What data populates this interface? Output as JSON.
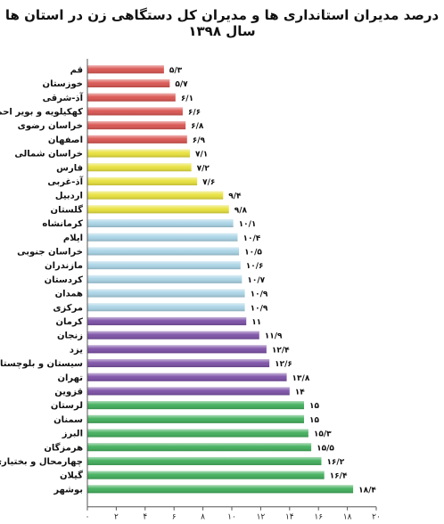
{
  "chart_data": {
    "type": "bar",
    "orientation": "horizontal",
    "title": "درصد مدیران استانداری ها و مدیران کل دستگاهی زن در استان ها سال ۱۳۹۸",
    "xlim": [
      0,
      20
    ],
    "x_ticks": [
      "۰",
      "۲",
      "۴",
      "۶",
      "۸",
      "۱۰",
      "۱۲",
      "۱۴",
      "۱۶",
      "۱۸",
      "۲۰"
    ],
    "grid": false,
    "legend": "none",
    "bars": [
      {
        "category": "قم",
        "value": 5.3,
        "label": "۵/۳",
        "color": "#d9534f"
      },
      {
        "category": "خوزستان",
        "value": 5.7,
        "label": "۵/۷",
        "color": "#d9534f"
      },
      {
        "category": "آذ-شرقی",
        "value": 6.1,
        "label": "۶/۱",
        "color": "#d9534f"
      },
      {
        "category": "کهکیلویه و بویر احمد",
        "value": 6.6,
        "label": "۶/۶",
        "color": "#d9534f"
      },
      {
        "category": "خراسان رضوی",
        "value": 6.8,
        "label": "۶/۸",
        "color": "#d9534f"
      },
      {
        "category": "اصفهان",
        "value": 6.9,
        "label": "۶/۹",
        "color": "#d9534f"
      },
      {
        "category": "خراسان شمالی",
        "value": 7.1,
        "label": "۷/۱",
        "color": "#e8e13a"
      },
      {
        "category": "فارس",
        "value": 7.2,
        "label": "۷/۲",
        "color": "#e8e13a"
      },
      {
        "category": "آذ-غربی",
        "value": 7.6,
        "label": "۷/۶",
        "color": "#e8e13a"
      },
      {
        "category": "اردبیل",
        "value": 9.4,
        "label": "۹/۴",
        "color": "#e8e13a"
      },
      {
        "category": "گلستان",
        "value": 9.8,
        "label": "۹/۸",
        "color": "#e8e13a"
      },
      {
        "category": "کرمانشاه",
        "value": 10.1,
        "label": "۱۰/۱",
        "color": "#a9d4e6"
      },
      {
        "category": "ایلام",
        "value": 10.4,
        "label": "۱۰/۴",
        "color": "#a9d4e6"
      },
      {
        "category": "خراسان جنوبی",
        "value": 10.5,
        "label": "۱۰/۵",
        "color": "#a9d4e6"
      },
      {
        "category": "مازندران",
        "value": 10.6,
        "label": "۱۰/۶",
        "color": "#a9d4e6"
      },
      {
        "category": "کردستان",
        "value": 10.7,
        "label": "۱۰/۷",
        "color": "#a9d4e6"
      },
      {
        "category": "همدان",
        "value": 10.9,
        "label": "۱۰/۹",
        "color": "#a9d4e6"
      },
      {
        "category": "مرکزی",
        "value": 10.9,
        "label": "۱۰/۹",
        "color": "#a9d4e6"
      },
      {
        "category": "کرمان",
        "value": 11,
        "label": "۱۱",
        "color": "#7b4fa6"
      },
      {
        "category": "زنجان",
        "value": 11.9,
        "label": "۱۱/۹",
        "color": "#7b4fa6"
      },
      {
        "category": "یزد",
        "value": 12.4,
        "label": "۱۲/۴",
        "color": "#7b4fa6"
      },
      {
        "category": "سیستان و بلوچستان",
        "value": 12.6,
        "label": "۱۲/۶",
        "color": "#7b4fa6"
      },
      {
        "category": "تهران",
        "value": 13.8,
        "label": "۱۳/۸",
        "color": "#7b4fa6"
      },
      {
        "category": "قزوین",
        "value": 14,
        "label": "۱۴",
        "color": "#7b4fa6"
      },
      {
        "category": "لرستان",
        "value": 15,
        "label": "۱۵",
        "color": "#3fae5a"
      },
      {
        "category": "سمنان",
        "value": 15,
        "label": "۱۵",
        "color": "#3fae5a"
      },
      {
        "category": "البرز",
        "value": 15.3,
        "label": "۱۵/۳",
        "color": "#3fae5a"
      },
      {
        "category": "هرمزگان",
        "value": 15.5,
        "label": "۱۵/۵",
        "color": "#3fae5a"
      },
      {
        "category": "چهارمحال و بختیاری",
        "value": 16.2,
        "label": "۱۶/۲",
        "color": "#3fae5a"
      },
      {
        "category": "گیلان",
        "value": 16.4,
        "label": "۱۶/۴",
        "color": "#3fae5a"
      },
      {
        "category": "بوشهر",
        "value": 18.4,
        "label": "۱۸/۴",
        "color": "#3fae5a"
      }
    ]
  }
}
